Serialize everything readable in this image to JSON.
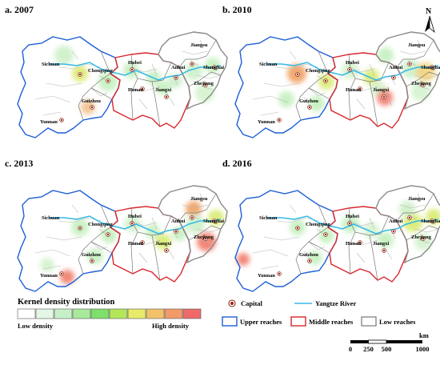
{
  "panels": [
    {
      "label": "a. 2007",
      "hotspots": [
        {
          "cx": 86,
          "cy": 68,
          "r": 10,
          "c": "#dbe86a"
        },
        {
          "cx": 66,
          "cy": 45,
          "r": 12,
          "c": "#ccf0c8"
        },
        {
          "cx": 121,
          "cy": 78,
          "r": 12,
          "c": "#c4f0be"
        },
        {
          "cx": 150,
          "cy": 64,
          "r": 10,
          "c": "#c4f0be"
        },
        {
          "cx": 178,
          "cy": 73,
          "r": 9,
          "c": "#c4f0be"
        },
        {
          "cx": 190,
          "cy": 86,
          "r": 9,
          "c": "#c4f0be"
        },
        {
          "cx": 205,
          "cy": 77,
          "r": 9,
          "c": "#ccf0c8"
        },
        {
          "cx": 228,
          "cy": 65,
          "r": 11,
          "c": "#ccf0c8"
        },
        {
          "cx": 242,
          "cy": 92,
          "r": 12,
          "c": "#d4f2cc"
        },
        {
          "cx": 252,
          "cy": 58,
          "r": 10,
          "c": "#c4f0be"
        },
        {
          "cx": 96,
          "cy": 110,
          "r": 9,
          "c": "#f2c08a"
        }
      ]
    },
    {
      "label": "b. 2010",
      "hotspots": [
        {
          "cx": 85,
          "cy": 68,
          "r": 12,
          "c": "#f0a060"
        },
        {
          "cx": 122,
          "cy": 78,
          "r": 10,
          "c": "#d8ea70"
        },
        {
          "cx": 152,
          "cy": 64,
          "r": 11,
          "c": "#d4f2cc"
        },
        {
          "cx": 178,
          "cy": 72,
          "r": 10,
          "c": "#d8ea70"
        },
        {
          "cx": 188,
          "cy": 88,
          "r": 10,
          "c": "#d4f2cc"
        },
        {
          "cx": 195,
          "cy": 98,
          "r": 10,
          "c": "#f07a6a"
        },
        {
          "cx": 228,
          "cy": 62,
          "r": 12,
          "c": "#ccf0c8"
        },
        {
          "cx": 246,
          "cy": 66,
          "r": 12,
          "c": "#f2d27a"
        },
        {
          "cx": 240,
          "cy": 90,
          "r": 12,
          "c": "#d4f2cc"
        },
        {
          "cx": 196,
          "cy": 45,
          "r": 10,
          "c": "#c4f0be"
        },
        {
          "cx": 110,
          "cy": 105,
          "r": 10,
          "c": "#c4f0be"
        },
        {
          "cx": 72,
          "cy": 100,
          "r": 10,
          "c": "#c4f0be"
        }
      ]
    },
    {
      "label": "c. 2013",
      "hotspots": [
        {
          "cx": 86,
          "cy": 68,
          "r": 11,
          "c": "#c4f0be"
        },
        {
          "cx": 122,
          "cy": 78,
          "r": 10,
          "c": "#c4f0be"
        },
        {
          "cx": 152,
          "cy": 64,
          "r": 11,
          "c": "#d4f2cc"
        },
        {
          "cx": 177,
          "cy": 73,
          "r": 9,
          "c": "#c4f0be"
        },
        {
          "cx": 190,
          "cy": 86,
          "r": 10,
          "c": "#d8ea70"
        },
        {
          "cx": 210,
          "cy": 76,
          "r": 9,
          "c": "#c4f0be"
        },
        {
          "cx": 228,
          "cy": 45,
          "r": 10,
          "c": "#f0a060"
        },
        {
          "cx": 230,
          "cy": 64,
          "r": 12,
          "c": "#ccf0c8"
        },
        {
          "cx": 244,
          "cy": 86,
          "r": 12,
          "c": "#f07a6a"
        },
        {
          "cx": 256,
          "cy": 56,
          "r": 10,
          "c": "#d8ea70"
        },
        {
          "cx": 70,
          "cy": 130,
          "r": 9,
          "c": "#f07a6a"
        },
        {
          "cx": 45,
          "cy": 115,
          "r": 9,
          "c": "#d4f2cc"
        },
        {
          "cx": 105,
          "cy": 104,
          "r": 10,
          "c": "#c4f0be"
        }
      ]
    },
    {
      "label": "d. 2016",
      "hotspots": [
        {
          "cx": 86,
          "cy": 68,
          "r": 10,
          "c": "#c4f0be"
        },
        {
          "cx": 122,
          "cy": 78,
          "r": 10,
          "c": "#c4f0be"
        },
        {
          "cx": 152,
          "cy": 64,
          "r": 11,
          "c": "#c4f0be"
        },
        {
          "cx": 178,
          "cy": 72,
          "r": 10,
          "c": "#d4f2cc"
        },
        {
          "cx": 196,
          "cy": 84,
          "r": 10,
          "c": "#c4f0be"
        },
        {
          "cx": 230,
          "cy": 62,
          "r": 12,
          "c": "#d8ea70"
        },
        {
          "cx": 243,
          "cy": 86,
          "r": 11,
          "c": "#d4f2cc"
        },
        {
          "cx": 256,
          "cy": 55,
          "r": 10,
          "c": "#d8ea70"
        },
        {
          "cx": 223,
          "cy": 45,
          "r": 10,
          "c": "#ccf0c8"
        },
        {
          "cx": 18,
          "cy": 108,
          "r": 8,
          "c": "#f07a6a"
        },
        {
          "cx": 108,
          "cy": 106,
          "r": 9,
          "c": "#c4f0be"
        }
      ]
    }
  ],
  "provinces": {
    "sichuan": "Sichuan",
    "chongqing": "Chongqing",
    "guizhou": "Guizhou",
    "yunnan": "Yunnan",
    "hubei": "Hubei",
    "hunan": "Hunan",
    "jiangxi": "Jiangxi",
    "anhui": "Anhui",
    "jiangsu": "Jiangsu",
    "shanghai": "Shanghai",
    "zhejiang": "Zhejiang"
  },
  "north_label": "N",
  "legend": {
    "title": "Kernel density distribution",
    "low": "Low density",
    "high": "High density",
    "ramp": [
      "#ffffff",
      "#e6f6e6",
      "#c8f0c8",
      "#a8ea9a",
      "#7ee06a",
      "#b4e65a",
      "#e8ea6a",
      "#f2c26a",
      "#f29a68",
      "#ee6a6a"
    ],
    "capital": "Capital",
    "river": "Yangtze River",
    "upper": "Upper reaches",
    "middle": "Middle reaches",
    "low_reaches": "Low reaches",
    "scale_unit": "km",
    "scale_ticks": [
      "0",
      "250",
      "500",
      "1000"
    ]
  },
  "colors": {
    "upper": "#1e5fd6",
    "middle": "#d8262c",
    "lower": "#8a8a8a",
    "river": "#35b8e8",
    "capital_fill": "#b01818"
  }
}
